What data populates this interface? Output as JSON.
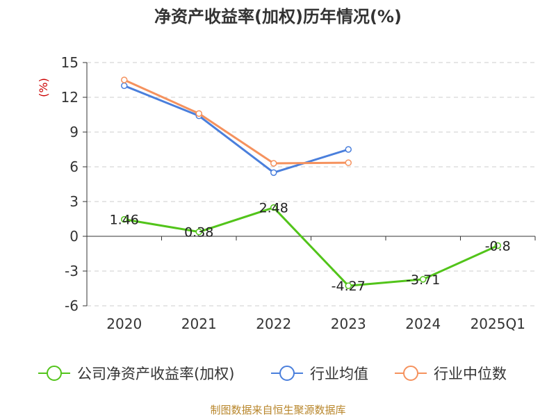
{
  "source_text": "制图数据来自恒生聚源数据库",
  "chart_data": {
    "type": "line",
    "title": "净资产收益率(加权)历年情况(%)",
    "ylabel": "(%)",
    "xlabel": "",
    "categories": [
      "2020",
      "2021",
      "2022",
      "2023",
      "2024",
      "2025Q1"
    ],
    "ylim": [
      -6,
      15
    ],
    "yticks": [
      "15",
      "12",
      "9",
      "6",
      "3",
      "0",
      "-3",
      "-6"
    ],
    "ytick_values": [
      15,
      12,
      9,
      6,
      3,
      0,
      -3,
      -6
    ],
    "grid": true,
    "legend_position": "bottom",
    "series": [
      {
        "name": "公司净资产收益率(加权)",
        "color": "#52c41a",
        "values": [
          1.46,
          0.38,
          2.48,
          -4.27,
          -3.71,
          -0.8
        ],
        "labels": [
          "1.46",
          "0.38",
          "2.48",
          "-4.27",
          "-3.71",
          "-0.8"
        ]
      },
      {
        "name": "行业均值",
        "color": "#4a7fdc",
        "values": [
          13.0,
          10.4,
          5.5,
          7.5,
          null,
          null
        ],
        "labels": []
      },
      {
        "name": "行业中位数",
        "color": "#f5925e",
        "values": [
          13.5,
          10.6,
          6.3,
          6.35,
          null,
          null
        ],
        "labels": []
      }
    ]
  }
}
